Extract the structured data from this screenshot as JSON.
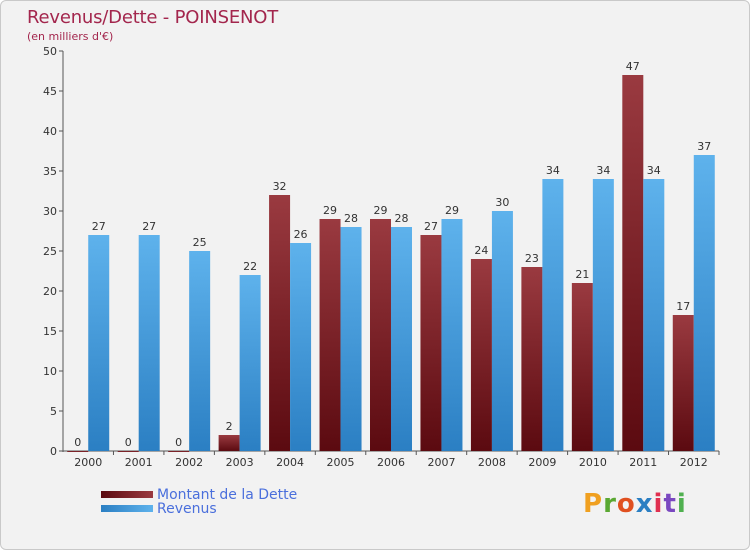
{
  "title": "Revenus/Dette - POINSENOT",
  "subtitle": "(en milliers d'€)",
  "colors": {
    "dette_dark": "#5b0a10",
    "dette_light": "#9a3a40",
    "revenus_dark": "#2b7fc3",
    "revenus_light": "#5eb2ec"
  },
  "chart_data": {
    "type": "bar",
    "categories": [
      "2000",
      "2001",
      "2002",
      "2003",
      "2004",
      "2005",
      "2006",
      "2007",
      "2008",
      "2009",
      "2010",
      "2011",
      "2012"
    ],
    "series": [
      {
        "name": "Montant de la Dette",
        "values": [
          0,
          0,
          0,
          2,
          32,
          29,
          29,
          27,
          24,
          23,
          21,
          47,
          17
        ]
      },
      {
        "name": "Revenus",
        "values": [
          27,
          27,
          25,
          22,
          26,
          28,
          28,
          29,
          30,
          34,
          34,
          34,
          37
        ]
      }
    ],
    "ylim": [
      0,
      50
    ],
    "yticks": [
      0,
      5,
      10,
      15,
      20,
      25,
      30,
      35,
      40,
      45,
      50
    ],
    "grid": false,
    "legend_position": "bottom-left"
  },
  "legend": {
    "items": [
      {
        "label": "Montant de la Dette"
      },
      {
        "label": "Revenus"
      }
    ]
  },
  "logo": {
    "letters": [
      "P",
      "r",
      "o",
      "x",
      "i",
      "t",
      "i"
    ],
    "colors": [
      "#f0a020",
      "#5aa832",
      "#e05020",
      "#2b7fc3",
      "#e03050",
      "#7a48c0",
      "#50b050"
    ]
  }
}
